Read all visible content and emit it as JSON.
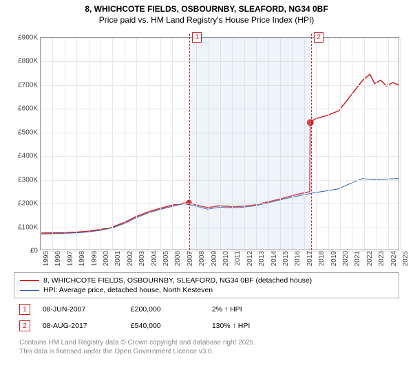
{
  "title": {
    "main": "8, WHICHCOTE FIELDS, OSBOURNBY, SLEAFORD, NG34 0BF",
    "sub": "Price paid vs. HM Land Registry's House Price Index (HPI)"
  },
  "chart": {
    "type": "line",
    "background_color": "#ffffff",
    "grid_color": "#e8e8e8",
    "axis_color": "#999999",
    "ylim": [
      0,
      900000
    ],
    "ytick_step": 100000,
    "yticklabels": [
      "£0",
      "£100K",
      "£200K",
      "£300K",
      "£400K",
      "£500K",
      "£600K",
      "£700K",
      "£800K",
      "£900K"
    ],
    "xlim": [
      1995,
      2025
    ],
    "xtick_step": 1,
    "xticklabels": [
      "1995",
      "1996",
      "1997",
      "1998",
      "1999",
      "2000",
      "2001",
      "2002",
      "2003",
      "2004",
      "2005",
      "2006",
      "2007",
      "2008",
      "2009",
      "2010",
      "2011",
      "2012",
      "2013",
      "2014",
      "2015",
      "2016",
      "2017",
      "2018",
      "2019",
      "2020",
      "2021",
      "2022",
      "2023",
      "2024",
      "2025"
    ],
    "tint_band": {
      "from_x": 2007.44,
      "to_x": 2017.6,
      "color": "rgba(180,200,230,0.22)"
    },
    "series": [
      {
        "name": "price_paid",
        "label": "8, WHICHCOTE FIELDS, OSBOURNBY, SLEAFORD, NG34 0BF (detached house)",
        "color": "#d62728",
        "line_width": 1.6,
        "points": [
          [
            1995.0,
            70000
          ],
          [
            1996.0,
            71000
          ],
          [
            1997.0,
            72000
          ],
          [
            1998.0,
            74000
          ],
          [
            1999.0,
            78000
          ],
          [
            2000.0,
            85000
          ],
          [
            2001.0,
            95000
          ],
          [
            2002.0,
            115000
          ],
          [
            2003.0,
            140000
          ],
          [
            2004.0,
            160000
          ],
          [
            2005.0,
            175000
          ],
          [
            2006.0,
            188000
          ],
          [
            2007.0,
            198000
          ],
          [
            2007.44,
            200000
          ],
          [
            2008.0,
            190000
          ],
          [
            2009.0,
            178000
          ],
          [
            2010.0,
            186000
          ],
          [
            2011.0,
            182000
          ],
          [
            2012.0,
            184000
          ],
          [
            2013.0,
            190000
          ],
          [
            2014.0,
            202000
          ],
          [
            2015.0,
            214000
          ],
          [
            2016.0,
            228000
          ],
          [
            2017.0,
            240000
          ],
          [
            2017.55,
            246000
          ],
          [
            2017.6,
            540000
          ],
          [
            2018.0,
            555000
          ],
          [
            2019.0,
            570000
          ],
          [
            2020.0,
            590000
          ],
          [
            2021.0,
            655000
          ],
          [
            2022.0,
            720000
          ],
          [
            2022.6,
            745000
          ],
          [
            2023.0,
            705000
          ],
          [
            2023.5,
            720000
          ],
          [
            2024.0,
            695000
          ],
          [
            2024.5,
            710000
          ],
          [
            2025.0,
            700000
          ]
        ],
        "markers": [
          {
            "x": 2007.44,
            "y": 200000,
            "r": 4
          },
          {
            "x": 2017.6,
            "y": 540000,
            "r": 5
          }
        ]
      },
      {
        "name": "hpi",
        "label": "HPI: Average price, detached house, North Kesteven",
        "color": "#2a5db0",
        "line_width": 1,
        "points": [
          [
            1995.0,
            66000
          ],
          [
            1996.0,
            67000
          ],
          [
            1997.0,
            69000
          ],
          [
            1998.0,
            71000
          ],
          [
            1999.0,
            75000
          ],
          [
            2000.0,
            82000
          ],
          [
            2001.0,
            92000
          ],
          [
            2002.0,
            110000
          ],
          [
            2003.0,
            135000
          ],
          [
            2004.0,
            155000
          ],
          [
            2005.0,
            170000
          ],
          [
            2006.0,
            183000
          ],
          [
            2007.0,
            195000
          ],
          [
            2008.0,
            185000
          ],
          [
            2009.0,
            172000
          ],
          [
            2010.0,
            180000
          ],
          [
            2011.0,
            178000
          ],
          [
            2012.0,
            180000
          ],
          [
            2013.0,
            186000
          ],
          [
            2014.0,
            198000
          ],
          [
            2015.0,
            210000
          ],
          [
            2016.0,
            222000
          ],
          [
            2017.0,
            232000
          ],
          [
            2018.0,
            242000
          ],
          [
            2019.0,
            250000
          ],
          [
            2020.0,
            258000
          ],
          [
            2021.0,
            282000
          ],
          [
            2022.0,
            302000
          ],
          [
            2023.0,
            296000
          ],
          [
            2024.0,
            300000
          ],
          [
            2025.0,
            302000
          ]
        ]
      }
    ],
    "event_markers": [
      {
        "num": "1",
        "x": 2007.44,
        "color": "#cc2222"
      },
      {
        "num": "2",
        "x": 2017.6,
        "color": "#cc2222"
      }
    ]
  },
  "legend": {
    "border_color": "#aaaaaa",
    "items": [
      {
        "color": "#d62728",
        "width": 2,
        "label": "8, WHICHCOTE FIELDS, OSBOURNBY, SLEAFORD, NG34 0BF (detached house)"
      },
      {
        "color": "#2a5db0",
        "width": 1,
        "label": "HPI: Average price, detached house, North Kesteven"
      }
    ]
  },
  "sales": [
    {
      "num": "1",
      "date": "08-JUN-2007",
      "price": "£200,000",
      "change": "2% ↑ HPI"
    },
    {
      "num": "2",
      "date": "08-AUG-2017",
      "price": "£540,000",
      "change": "130% ↑ HPI"
    }
  ],
  "footer": {
    "line1": "Contains HM Land Registry data © Crown copyright and database right 2025.",
    "line2": "This data is licensed under the Open Government Licence v3.0."
  }
}
